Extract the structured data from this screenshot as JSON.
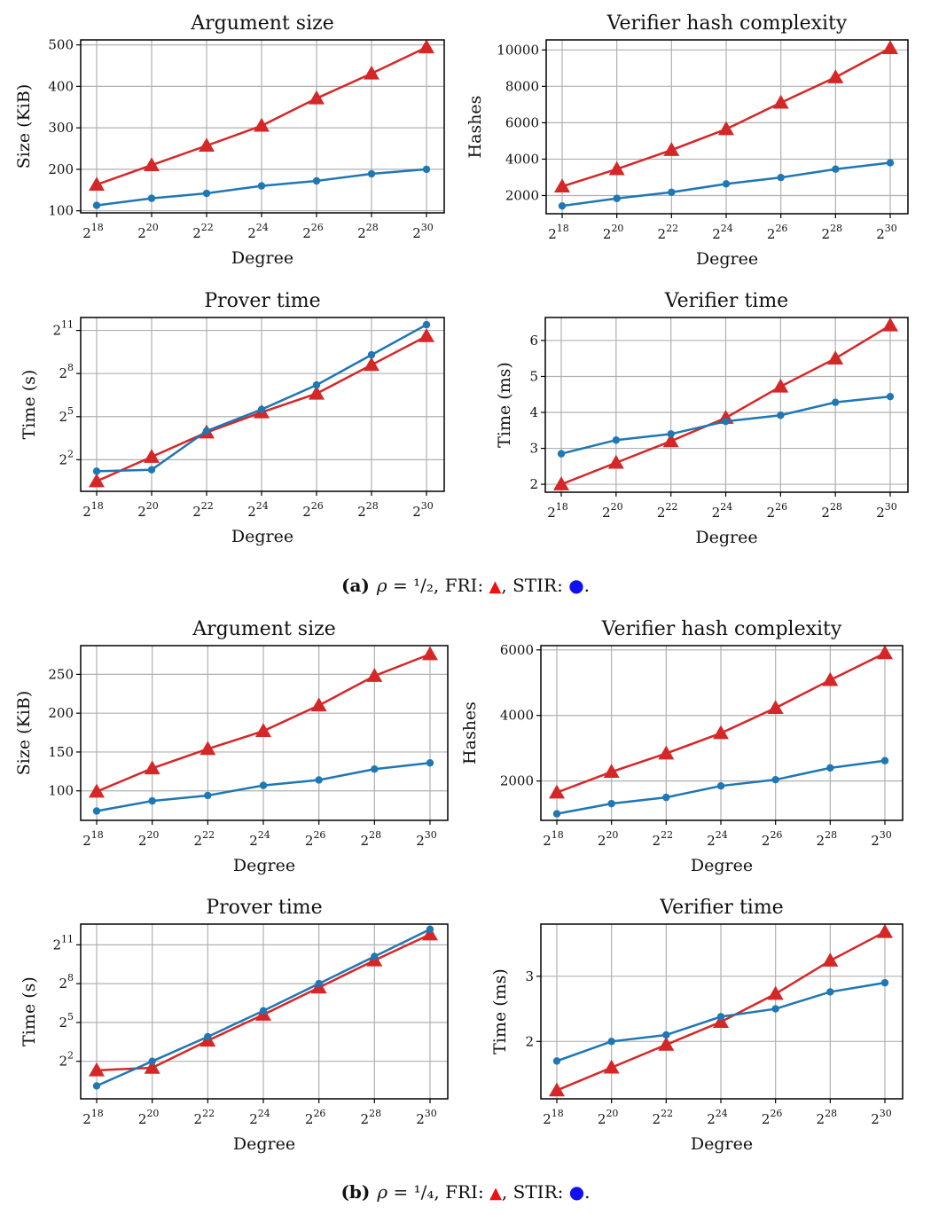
{
  "captions": {
    "a": {
      "tag": "(a)",
      "rho": "ρ",
      "eq": " = ¹/₂, FRI: ",
      "tri": "▲",
      "mid": ", STIR: ",
      "dot": "●",
      "end": "."
    },
    "b": {
      "tag": "(b)",
      "rho": "ρ",
      "eq": " = ¹/₄, FRI: ",
      "tri": "▲",
      "mid": ", STIR: ",
      "dot": "●",
      "end": "."
    }
  },
  "colors": {
    "fri": "#d62728",
    "stir": "#1f77b4",
    "grid": "#b0b0b0",
    "caption_fri": "#ee1111",
    "caption_stir": "#1111ee"
  },
  "chart_data": [
    {
      "id": "a-argument-size",
      "panel": "a",
      "type": "line",
      "title": "Argument size",
      "xlabel": "Degree",
      "ylabel": "Size (KiB)",
      "yscale": "linear",
      "x": [
        "2^18",
        "2^20",
        "2^22",
        "2^24",
        "2^26",
        "2^28",
        "2^30"
      ],
      "ylim": [
        95,
        512
      ],
      "yticks": [
        100,
        200,
        300,
        400,
        500
      ],
      "grid": true,
      "series": [
        {
          "name": "FRI",
          "marker": "triangle",
          "values": [
            163,
            210,
            257,
            305,
            371,
            431,
            494
          ]
        },
        {
          "name": "STIR",
          "marker": "circle",
          "values": [
            113,
            130,
            142,
            160,
            172,
            189,
            200
          ]
        }
      ]
    },
    {
      "id": "a-verifier-hash",
      "panel": "a",
      "type": "line",
      "title": "Verifier hash complexity",
      "xlabel": "Degree",
      "ylabel": "Hashes",
      "yscale": "linear",
      "x": [
        "2^18",
        "2^20",
        "2^22",
        "2^24",
        "2^26",
        "2^28",
        "2^30"
      ],
      "ylim": [
        1000,
        10550
      ],
      "yticks": [
        2000,
        4000,
        6000,
        8000,
        10000
      ],
      "grid": true,
      "series": [
        {
          "name": "FRI",
          "marker": "triangle",
          "values": [
            2500,
            3450,
            4500,
            5650,
            7100,
            8500,
            10100
          ]
        },
        {
          "name": "STIR",
          "marker": "circle",
          "values": [
            1430,
            1840,
            2180,
            2640,
            2990,
            3450,
            3800
          ]
        }
      ]
    },
    {
      "id": "a-prover-time",
      "panel": "a",
      "type": "line",
      "title": "Prover time",
      "xlabel": "Degree",
      "ylabel": "Time (s)",
      "yscale": "log2",
      "x": [
        "2^18",
        "2^20",
        "2^22",
        "2^24",
        "2^26",
        "2^28",
        "2^30"
      ],
      "ylim_log2": [
        -0.2,
        11.9
      ],
      "yticks_log2": [
        2,
        5,
        8,
        11
      ],
      "grid": true,
      "series": [
        {
          "name": "FRI",
          "marker": "triangle",
          "log2_values": [
            0.5,
            2.2,
            3.9,
            5.3,
            6.6,
            8.6,
            10.6
          ]
        },
        {
          "name": "STIR",
          "marker": "circle",
          "log2_values": [
            1.2,
            1.3,
            4.0,
            5.5,
            7.2,
            9.3,
            11.4
          ]
        }
      ]
    },
    {
      "id": "a-verifier-time",
      "panel": "a",
      "type": "line",
      "title": "Verifier time",
      "xlabel": "Degree",
      "ylabel": "Time (ms)",
      "yscale": "linear",
      "x": [
        "2^18",
        "2^20",
        "2^22",
        "2^24",
        "2^26",
        "2^28",
        "2^30"
      ],
      "ylim": [
        1.78,
        6.64
      ],
      "yticks": [
        2,
        3,
        4,
        5,
        6
      ],
      "grid": true,
      "series": [
        {
          "name": "FRI",
          "marker": "triangle",
          "values": [
            2.0,
            2.6,
            3.2,
            3.85,
            4.72,
            5.5,
            6.42
          ]
        },
        {
          "name": "STIR",
          "marker": "circle",
          "values": [
            2.85,
            3.23,
            3.4,
            3.75,
            3.92,
            4.28,
            4.44
          ]
        }
      ]
    },
    {
      "id": "b-argument-size",
      "panel": "b",
      "type": "line",
      "title": "Argument size",
      "xlabel": "Degree",
      "ylabel": "Size (KiB)",
      "yscale": "linear",
      "x": [
        "2^18",
        "2^20",
        "2^22",
        "2^24",
        "2^26",
        "2^28",
        "2^30"
      ],
      "ylim": [
        62,
        287
      ],
      "yticks": [
        100,
        150,
        200,
        250
      ],
      "grid": true,
      "series": [
        {
          "name": "FRI",
          "marker": "triangle",
          "values": [
            99,
            129,
            154,
            177,
            210,
            248,
            276
          ]
        },
        {
          "name": "STIR",
          "marker": "circle",
          "values": [
            74,
            87,
            94,
            107,
            114,
            128,
            136
          ]
        }
      ]
    },
    {
      "id": "b-verifier-hash",
      "panel": "b",
      "type": "line",
      "title": "Verifier hash complexity",
      "xlabel": "Degree",
      "ylabel": "Hashes",
      "yscale": "linear",
      "x": [
        "2^18",
        "2^20",
        "2^22",
        "2^24",
        "2^26",
        "2^28",
        "2^30"
      ],
      "ylim": [
        800,
        6130
      ],
      "yticks": [
        2000,
        4000,
        6000
      ],
      "grid": true,
      "series": [
        {
          "name": "FRI",
          "marker": "triangle",
          "values": [
            1650,
            2280,
            2840,
            3460,
            4230,
            5080,
            5900
          ]
        },
        {
          "name": "STIR",
          "marker": "circle",
          "values": [
            1000,
            1310,
            1500,
            1850,
            2040,
            2400,
            2620
          ]
        }
      ]
    },
    {
      "id": "b-prover-time",
      "panel": "b",
      "type": "line",
      "title": "Prover time",
      "xlabel": "Degree",
      "ylabel": "Time (s)",
      "yscale": "log2",
      "x": [
        "2^18",
        "2^20",
        "2^22",
        "2^24",
        "2^26",
        "2^28",
        "2^30"
      ],
      "ylim_log2": [
        -0.9,
        12.6
      ],
      "yticks_log2": [
        2,
        5,
        8,
        11
      ],
      "grid": true,
      "series": [
        {
          "name": "FRI",
          "marker": "triangle",
          "log2_values": [
            1.3,
            1.5,
            3.6,
            5.6,
            7.7,
            9.8,
            11.8
          ]
        },
        {
          "name": "STIR",
          "marker": "circle",
          "log2_values": [
            0.1,
            2.0,
            3.9,
            5.9,
            8.0,
            10.1,
            12.2
          ]
        }
      ]
    },
    {
      "id": "b-verifier-time",
      "panel": "b",
      "type": "line",
      "title": "Verifier time",
      "xlabel": "Degree",
      "ylabel": "Time (ms)",
      "yscale": "linear",
      "x": [
        "2^18",
        "2^20",
        "2^22",
        "2^24",
        "2^26",
        "2^28",
        "2^30"
      ],
      "ylim": [
        1.12,
        3.8
      ],
      "yticks": [
        2,
        3
      ],
      "grid": true,
      "series": [
        {
          "name": "FRI",
          "marker": "triangle",
          "values": [
            1.25,
            1.6,
            1.95,
            2.3,
            2.73,
            3.24,
            3.68
          ]
        },
        {
          "name": "STIR",
          "marker": "circle",
          "values": [
            1.7,
            2.0,
            2.1,
            2.38,
            2.5,
            2.76,
            2.9
          ]
        }
      ]
    }
  ]
}
